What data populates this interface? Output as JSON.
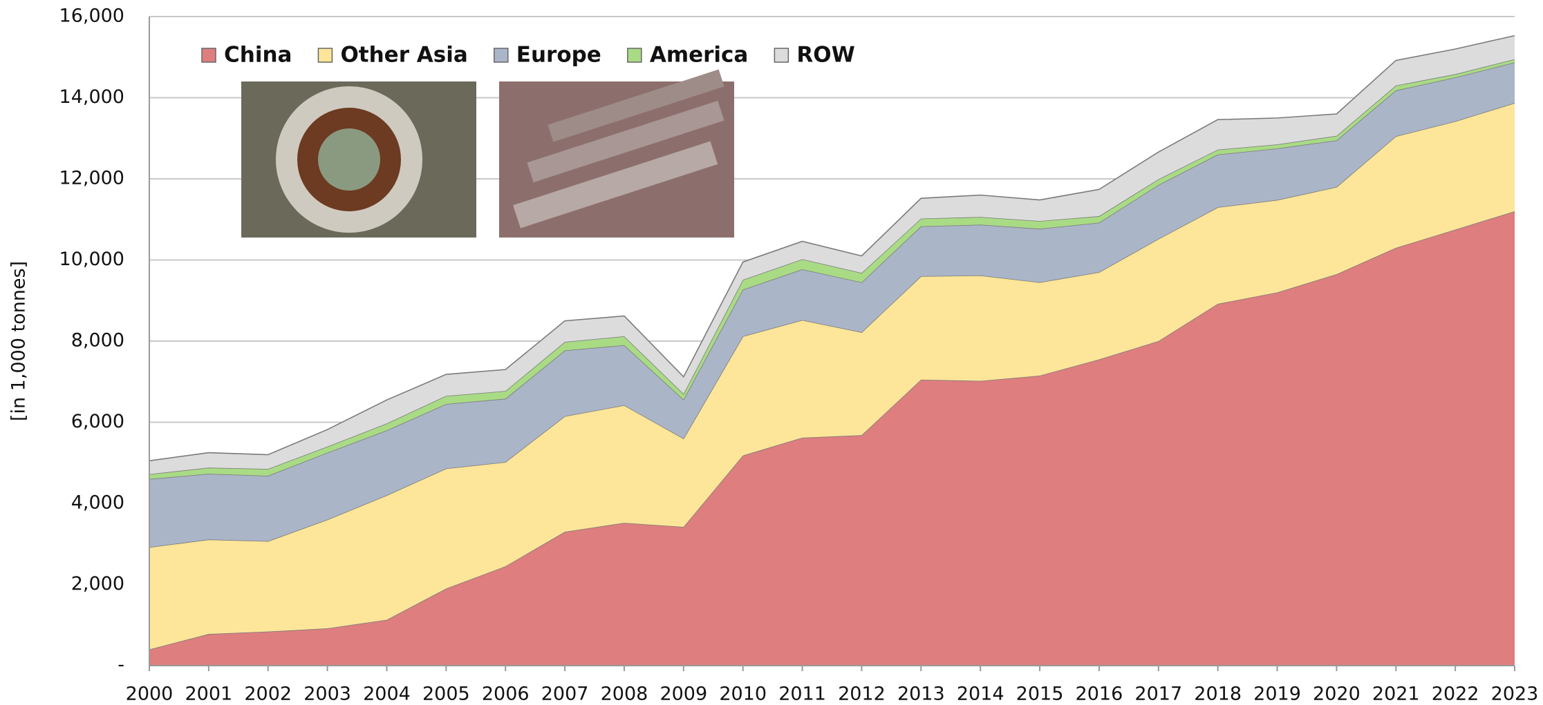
{
  "chart_data": {
    "type": "stacked_area",
    "y_label": "[in 1,000 tonnes]",
    "categories": [
      "2000",
      "2001",
      "2002",
      "2003",
      "2004",
      "2005",
      "2006",
      "2007",
      "2008",
      "2009",
      "2010",
      "2011",
      "2012",
      "2013",
      "2014",
      "2015",
      "2016",
      "2017",
      "2018",
      "2019",
      "2020",
      "2021",
      "2022",
      "2023"
    ],
    "series": [
      {
        "name": "China",
        "color": "#de7e7e",
        "values": [
          400,
          780,
          840,
          920,
          1130,
          1900,
          2450,
          3300,
          3520,
          3420,
          5180,
          5620,
          5680,
          7050,
          7020,
          7150,
          7550,
          8000,
          8920,
          9200,
          9650,
          10300,
          10750,
          11200
        ]
      },
      {
        "name": "Other Asia",
        "color": "#fde599",
        "values": [
          2520,
          2330,
          2230,
          2680,
          3070,
          2960,
          2570,
          2850,
          2900,
          2180,
          2940,
          2900,
          2540,
          2550,
          2600,
          2300,
          2150,
          2520,
          2380,
          2280,
          2150,
          2750,
          2670,
          2670
        ]
      },
      {
        "name": "Europe",
        "color": "#aab5c8",
        "values": [
          1680,
          1620,
          1610,
          1650,
          1600,
          1590,
          1560,
          1620,
          1480,
          960,
          1150,
          1250,
          1230,
          1230,
          1250,
          1320,
          1220,
          1330,
          1300,
          1270,
          1150,
          1130,
          1080,
          1000
        ]
      },
      {
        "name": "America",
        "color": "#a9db85",
        "values": [
          120,
          150,
          170,
          150,
          170,
          200,
          190,
          210,
          220,
          140,
          240,
          250,
          230,
          190,
          190,
          190,
          160,
          140,
          120,
          100,
          110,
          120,
          80,
          80
        ]
      },
      {
        "name": "ROW",
        "color": "#dcdcdc",
        "values": [
          330,
          370,
          350,
          420,
          580,
          530,
          530,
          520,
          500,
          420,
          440,
          440,
          420,
          500,
          540,
          520,
          660,
          670,
          740,
          650,
          540,
          620,
          620,
          580
        ]
      }
    ],
    "ylim": [
      0,
      16000
    ],
    "yticks": [
      {
        "value": 0,
        "label": "-"
      },
      {
        "value": 2000,
        "label": "2,000"
      },
      {
        "value": 4000,
        "label": "4,000"
      },
      {
        "value": 6000,
        "label": "6,000"
      },
      {
        "value": 8000,
        "label": "8,000"
      },
      {
        "value": 10000,
        "label": "10,000"
      },
      {
        "value": 12000,
        "label": "12,000"
      },
      {
        "value": 14000,
        "label": "14,000"
      },
      {
        "value": 16000,
        "label": "16,000"
      }
    ],
    "grid": true,
    "legend": "top-left"
  }
}
